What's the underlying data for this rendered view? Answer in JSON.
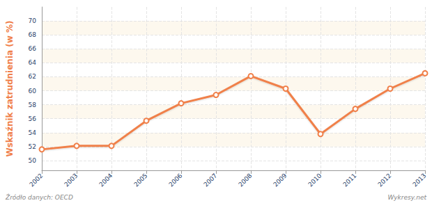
{
  "chart_data": {
    "type": "line",
    "y_label": "Wskaźnik zatrudnienia (w %)",
    "categories": [
      "2002",
      "2003",
      "2004",
      "2005",
      "2006",
      "2007",
      "2008",
      "2009",
      "2010",
      "2011",
      "2012",
      "2013"
    ],
    "values": [
      51.6,
      52.1,
      52.1,
      55.7,
      58.2,
      59.4,
      62.1,
      60.3,
      53.8,
      57.4,
      60.3,
      62.5
    ],
    "color": "#f0804a",
    "marker": "circle",
    "ylim": [
      48.6,
      72
    ],
    "yticks": [
      50,
      52,
      54,
      56,
      58,
      60,
      62,
      64,
      66,
      68,
      70
    ],
    "grid": true,
    "annotations": [
      "Źródło danych: OECD",
      "Wykresy.net",
      "wykresy.net"
    ]
  }
}
